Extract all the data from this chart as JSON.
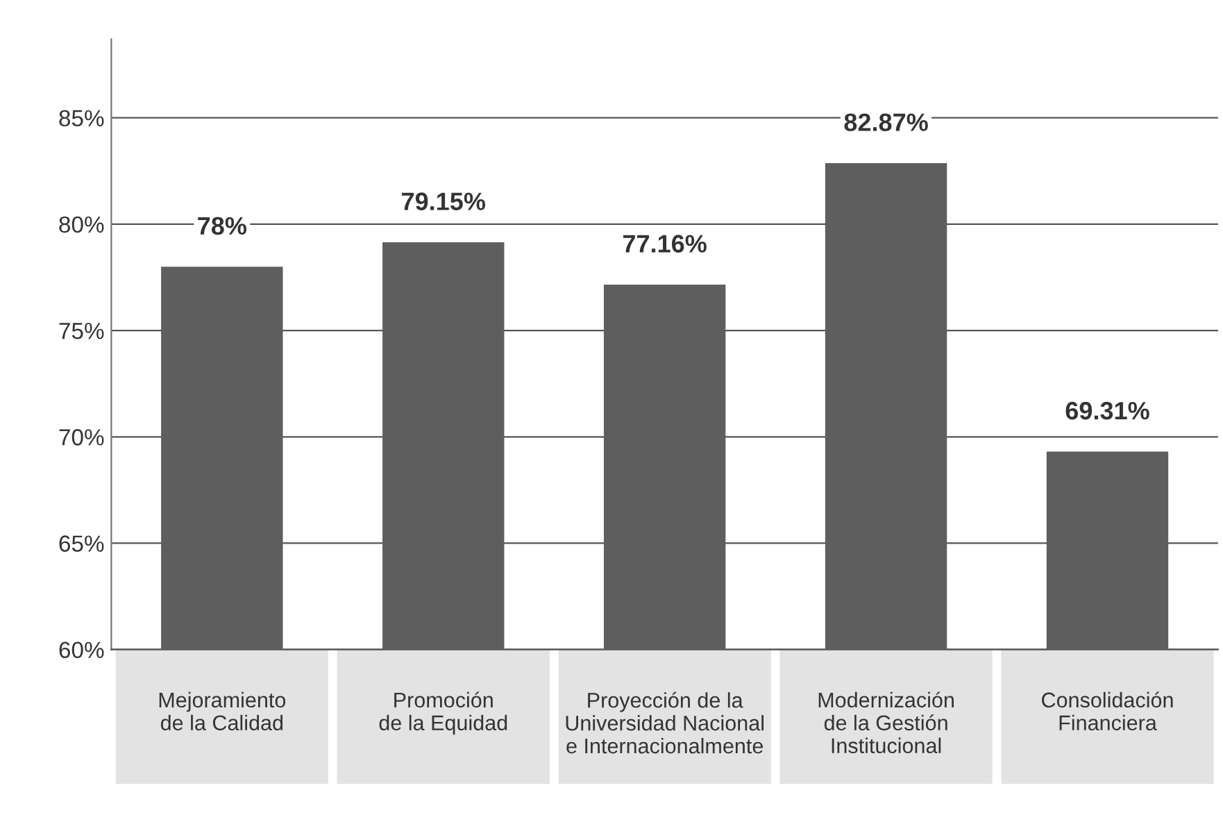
{
  "chart_data": {
    "type": "bar",
    "categories": [
      "Mejoramiento\nde la Calidad",
      "Promoción\nde la Equidad",
      "Proyección de la\nUniversidad Nacional\ne Internacionalmente",
      "Modernización\nde la Gestión\nInstitucional",
      "Consolidación\nFinanciera"
    ],
    "values": [
      78,
      79.15,
      77.16,
      82.87,
      69.31
    ],
    "value_labels": [
      "78%",
      "79.15%",
      "77.16%",
      "82.87%",
      "69.31%"
    ],
    "color": "#5e5e5e",
    "ylim": [
      60,
      88.7
    ],
    "yticks": [
      {
        "value": 60,
        "label": "60%"
      },
      {
        "value": 65,
        "label": "65%"
      },
      {
        "value": 70,
        "label": "70%"
      },
      {
        "value": 75,
        "label": "75%"
      },
      {
        "value": 80,
        "label": "80%"
      },
      {
        "value": 85,
        "label": "85%"
      }
    ],
    "grid": "y"
  }
}
